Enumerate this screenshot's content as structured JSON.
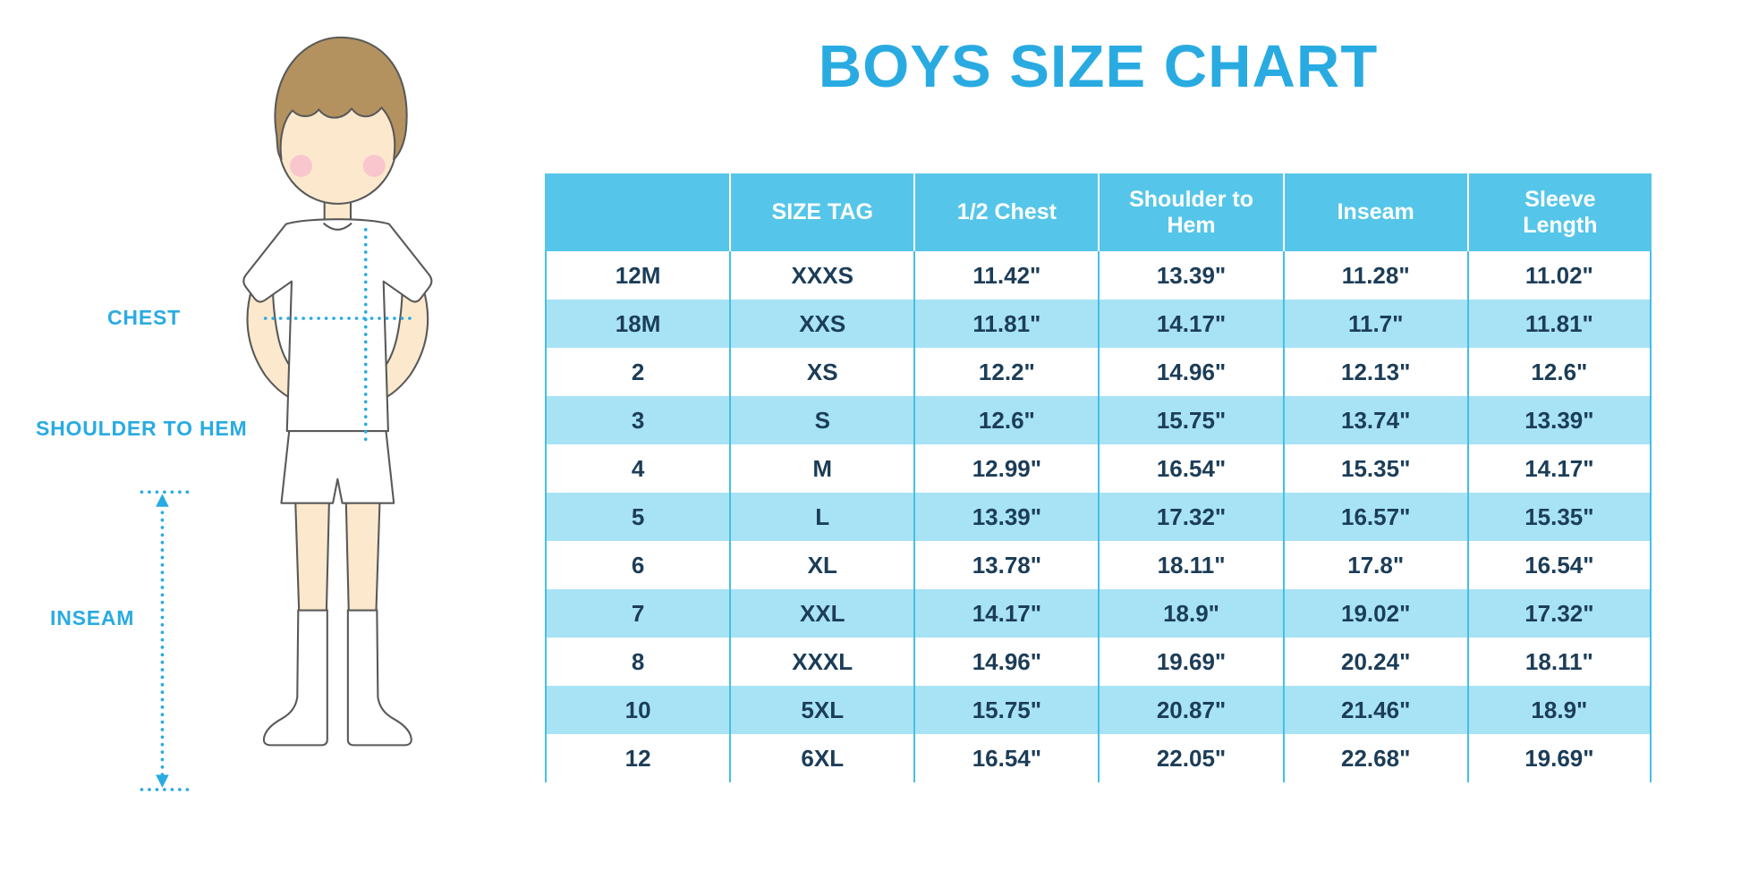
{
  "title": "BOYS SIZE CHART",
  "illustration": {
    "description": "boy wearing white t-shirt, shorts and knee socks with dotted measurement guides",
    "labels": {
      "chest": "CHEST",
      "shoulder_to_hem": "SHOULDER TO HEM",
      "inseam": "INSEAM"
    }
  },
  "colors": {
    "accent": "#29ABE2",
    "header_bg": "#55C6E9",
    "stripe_bg": "#A7E3F5",
    "cell_text": "#1C3D58",
    "header_text": "#FFFFFF",
    "grid_line": "#45BFE6",
    "skin": "#FCE9CD",
    "hair": "#B4925F",
    "blush": "#F8C0CE",
    "outline": "#595959"
  },
  "chart_data": {
    "type": "table",
    "title": "BOYS SIZE CHART",
    "columns": [
      "",
      "SIZE TAG",
      "1/2 Chest",
      "Shoulder to Hem",
      "Inseam",
      "Sleeve Length"
    ],
    "rows": [
      [
        "12M",
        "XXXS",
        "11.42\"",
        "13.39\"",
        "11.28\"",
        "11.02\""
      ],
      [
        "18M",
        "XXS",
        "11.81\"",
        "14.17\"",
        "11.7\"",
        "11.81\""
      ],
      [
        "2",
        "XS",
        "12.2\"",
        "14.96\"",
        "12.13\"",
        "12.6\""
      ],
      [
        "3",
        "S",
        "12.6\"",
        "15.75\"",
        "13.74\"",
        "13.39\""
      ],
      [
        "4",
        "M",
        "12.99\"",
        "16.54\"",
        "15.35\"",
        "14.17\""
      ],
      [
        "5",
        "L",
        "13.39\"",
        "17.32\"",
        "16.57\"",
        "15.35\""
      ],
      [
        "6",
        "XL",
        "13.78\"",
        "18.11\"",
        "17.8\"",
        "16.54\""
      ],
      [
        "7",
        "XXL",
        "14.17\"",
        "18.9\"",
        "19.02\"",
        "17.32\""
      ],
      [
        "8",
        "XXXL",
        "14.96\"",
        "19.69\"",
        "20.24\"",
        "18.11\""
      ],
      [
        "10",
        "5XL",
        "15.75\"",
        "20.87\"",
        "21.46\"",
        "18.9\""
      ],
      [
        "12",
        "6XL",
        "16.54\"",
        "22.05\"",
        "22.68\"",
        "19.69\""
      ]
    ],
    "row_striping": "odd rows white, even rows light cyan",
    "grid": "vertical column dividers only"
  }
}
